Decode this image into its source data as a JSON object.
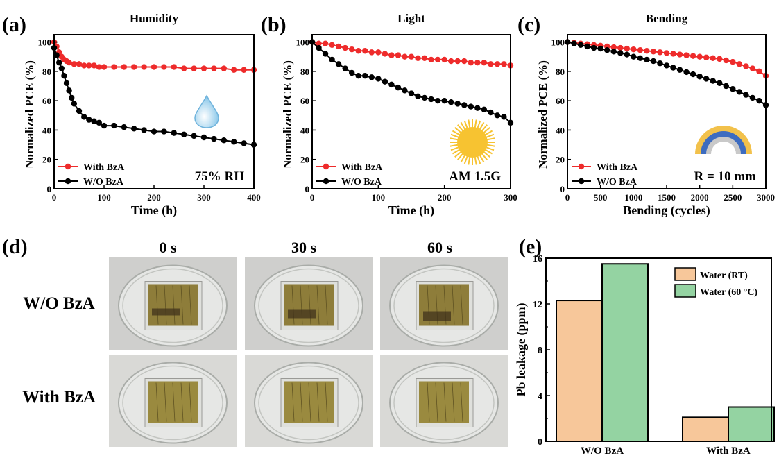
{
  "panel_labels": {
    "a": "(a)",
    "b": "(b)",
    "c": "(c)",
    "d": "(d)",
    "e": "(e)"
  },
  "photo_panel": {
    "column_headers": [
      "0 s",
      "30 s",
      "60 s"
    ],
    "row_headers": [
      "W/O BzA",
      "With BzA"
    ]
  },
  "colors": {
    "with_bza": "#ee2b2b",
    "wo_bza": "#000000",
    "water_rt": "#f7c79a",
    "water_60c": "#94d3a2",
    "droplet": "#8ec9ea",
    "sun": "#f7c331",
    "arc_outer": "#f2c14b",
    "arc_middle": "#3d6cc0",
    "arc_inner": "#c9c9c9"
  },
  "icons": {
    "a": "water-droplet-icon",
    "b": "sun-icon",
    "c": "bending-arc-icon"
  },
  "chart_data": [
    {
      "id": "a",
      "type": "line",
      "title": "Humidity",
      "xlabel": "Time (h)",
      "ylabel": "Normalized PCE (%)",
      "xlim": [
        0,
        400
      ],
      "ylim": [
        0,
        105
      ],
      "xticks": [
        0,
        100,
        200,
        300,
        400
      ],
      "yticks": [
        0,
        20,
        40,
        60,
        80,
        100
      ],
      "annotation": "75% RH",
      "legend_position": "bottom-left",
      "series": [
        {
          "name": "With BzA",
          "color": "#ee2b2b",
          "x": [
            0,
            5,
            10,
            15,
            20,
            25,
            30,
            40,
            50,
            60,
            70,
            80,
            90,
            100,
            120,
            140,
            160,
            180,
            200,
            220,
            240,
            260,
            280,
            300,
            320,
            340,
            360,
            380,
            400
          ],
          "y": [
            100,
            97,
            93,
            90,
            88,
            87,
            86,
            85,
            85,
            84,
            84,
            84,
            83,
            83,
            83,
            83,
            83,
            83,
            83,
            83,
            83,
            82,
            82,
            82,
            82,
            82,
            81,
            81,
            81
          ]
        },
        {
          "name": "W/O BzA",
          "color": "#000000",
          "x": [
            0,
            5,
            10,
            15,
            20,
            25,
            30,
            35,
            40,
            50,
            60,
            70,
            80,
            90,
            100,
            120,
            140,
            160,
            180,
            200,
            220,
            240,
            260,
            280,
            300,
            320,
            340,
            360,
            380,
            400
          ],
          "y": [
            96,
            91,
            86,
            82,
            77,
            72,
            67,
            62,
            58,
            53,
            49,
            47,
            46,
            45,
            43,
            43,
            42,
            41,
            40,
            39,
            39,
            38,
            37,
            36,
            35,
            34,
            33,
            32,
            31,
            30
          ]
        }
      ]
    },
    {
      "id": "b",
      "type": "line",
      "title": "Light",
      "xlabel": "Time (h)",
      "ylabel": "Normalized PCE (%)",
      "xlim": [
        0,
        300
      ],
      "ylim": [
        0,
        105
      ],
      "xticks": [
        0,
        100,
        200,
        300
      ],
      "yticks": [
        0,
        20,
        40,
        60,
        80,
        100
      ],
      "annotation": "AM 1.5G",
      "legend_position": "bottom-left",
      "series": [
        {
          "name": "With BzA",
          "color": "#ee2b2b",
          "x": [
            0,
            10,
            20,
            30,
            40,
            50,
            60,
            70,
            80,
            90,
            100,
            110,
            120,
            130,
            140,
            150,
            160,
            170,
            180,
            190,
            200,
            210,
            220,
            230,
            240,
            250,
            260,
            270,
            280,
            290,
            300
          ],
          "y": [
            100,
            99,
            99,
            98,
            97,
            96,
            95,
            94,
            94,
            93,
            93,
            92,
            91,
            91,
            90,
            90,
            89,
            89,
            88,
            88,
            88,
            87,
            87,
            87,
            86,
            86,
            86,
            85,
            85,
            85,
            84
          ]
        },
        {
          "name": "W/O BzA",
          "color": "#000000",
          "x": [
            0,
            10,
            20,
            30,
            40,
            50,
            60,
            70,
            80,
            90,
            100,
            110,
            120,
            130,
            140,
            150,
            160,
            170,
            180,
            190,
            200,
            210,
            220,
            230,
            240,
            250,
            260,
            270,
            280,
            290,
            300
          ],
          "y": [
            100,
            96,
            92,
            88,
            85,
            82,
            79,
            77,
            77,
            76,
            75,
            73,
            71,
            69,
            67,
            65,
            63,
            62,
            61,
            60,
            60,
            59,
            58,
            57,
            56,
            55,
            54,
            52,
            50,
            49,
            45
          ]
        }
      ]
    },
    {
      "id": "c",
      "type": "line",
      "title": "Bending",
      "xlabel": "Bending (cycles)",
      "ylabel": "Normalized PCE (%)",
      "xlim": [
        0,
        3000
      ],
      "ylim": [
        0,
        105
      ],
      "xticks": [
        0,
        500,
        1000,
        1500,
        2000,
        2500,
        3000
      ],
      "yticks": [
        0,
        20,
        40,
        60,
        80,
        100
      ],
      "annotation": "R = 10 mm",
      "legend_position": "bottom-left",
      "series": [
        {
          "name": "With BzA",
          "color": "#ee2b2b",
          "x": [
            0,
            100,
            200,
            300,
            400,
            500,
            600,
            700,
            800,
            900,
            1000,
            1100,
            1200,
            1300,
            1400,
            1500,
            1600,
            1700,
            1800,
            1900,
            2000,
            2100,
            2200,
            2300,
            2400,
            2500,
            2600,
            2700,
            2800,
            2900,
            3000
          ],
          "y": [
            100,
            99.5,
            99,
            98.5,
            98,
            97.5,
            97,
            96.5,
            96,
            95.5,
            95,
            94.5,
            94,
            93.5,
            93,
            92.5,
            92,
            91.5,
            91,
            90.5,
            90,
            89.5,
            89,
            88.5,
            87.5,
            86.5,
            85,
            83.5,
            82,
            80,
            77
          ]
        },
        {
          "name": "W/O BzA",
          "color": "#000000",
          "x": [
            0,
            100,
            200,
            300,
            400,
            500,
            600,
            700,
            800,
            900,
            1000,
            1100,
            1200,
            1300,
            1400,
            1500,
            1600,
            1700,
            1800,
            1900,
            2000,
            2100,
            2200,
            2300,
            2400,
            2500,
            2600,
            2700,
            2800,
            2900,
            3000
          ],
          "y": [
            100,
            99,
            98,
            97,
            96,
            95.5,
            94.5,
            93.5,
            92.5,
            91.5,
            90,
            89,
            88,
            87,
            85.5,
            84,
            82.5,
            81,
            79.5,
            78,
            76.5,
            75,
            73.5,
            72,
            70,
            68,
            66,
            64,
            62,
            60,
            57
          ]
        }
      ]
    },
    {
      "id": "e",
      "type": "bar",
      "xlabel": "",
      "ylabel": "Pb leakage (ppm)",
      "ylim": [
        0,
        16
      ],
      "yticks": [
        0,
        4,
        8,
        12,
        16
      ],
      "categories": [
        "W/O BzA",
        "With BzA"
      ],
      "legend_position": "top-right",
      "series": [
        {
          "name": "Water (RT)",
          "color": "#f7c79a",
          "values": [
            12.3,
            2.1
          ]
        },
        {
          "name": "Water (60 °C)",
          "color": "#94d3a2",
          "values": [
            15.5,
            3.0
          ]
        }
      ]
    }
  ]
}
